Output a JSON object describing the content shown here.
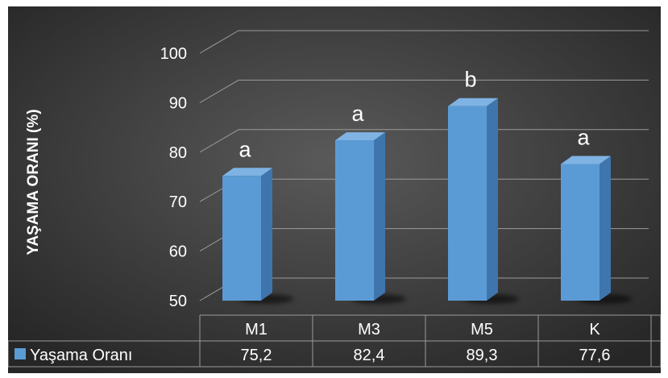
{
  "chart_data": {
    "type": "bar",
    "style": "3d-column-with-data-table",
    "categories": [
      "M1",
      "M3",
      "M5",
      "K"
    ],
    "series": [
      {
        "name": "Yaşama Oranı",
        "values": [
          75.2,
          82.4,
          89.3,
          77.6
        ],
        "value_labels": [
          "75,2",
          "82,4",
          "89,3",
          "77,6"
        ],
        "color": "#5b9bd5"
      }
    ],
    "significance_letters": [
      "a",
      "a",
      "b",
      "a"
    ],
    "ylabel": "YAŞAMA ORANI (%)",
    "ylim": [
      50,
      100
    ],
    "yticks": [
      50,
      60,
      70,
      80,
      90,
      100
    ],
    "grid": true,
    "legend": "data-table-left",
    "colors": {
      "background_center": "#5a5a5a",
      "background_edge": "#262626",
      "bar_front": "#5b9bd5",
      "bar_side": "#3f75ad",
      "bar_top": "#7fb3e3",
      "grid": "#9a9a9a",
      "text": "#ffffff"
    }
  }
}
